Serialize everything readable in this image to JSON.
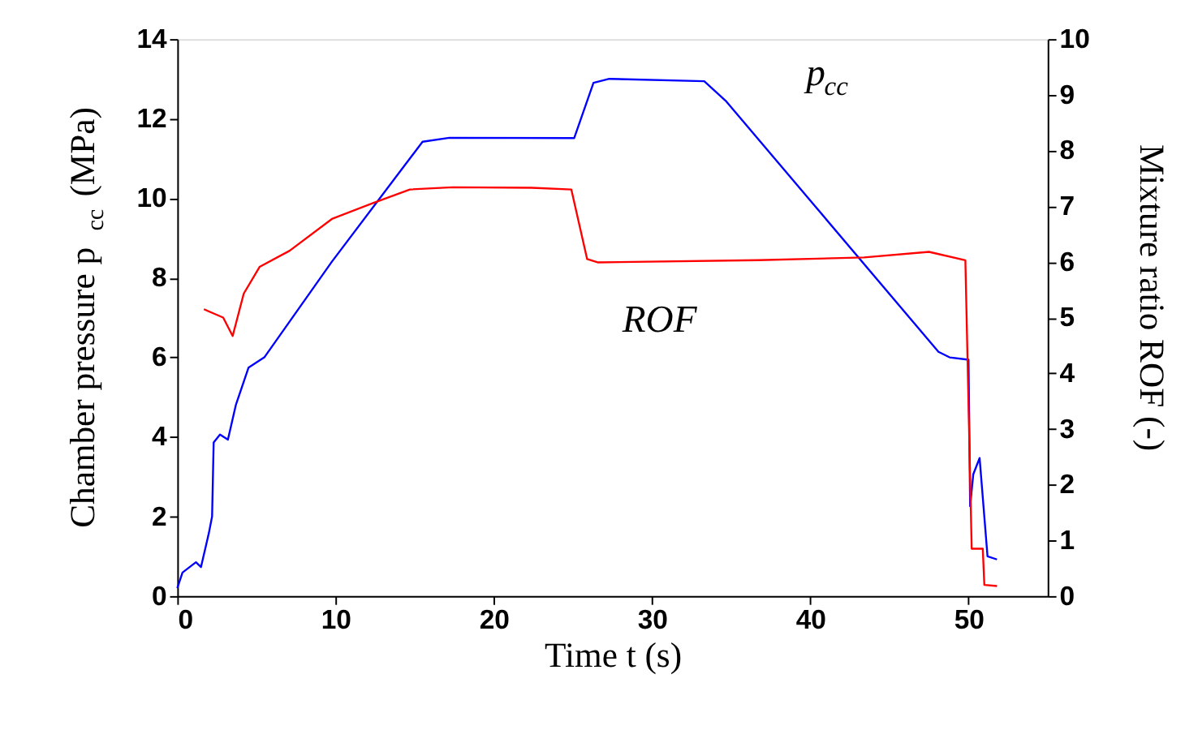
{
  "chart_data": {
    "type": "line",
    "xlabel": "Time t (s)",
    "ylabel": "Chamber pressure p$_{cc}$ (MPa)",
    "y2label": "Mixture ratio ROF (-)",
    "xlim": [
      0,
      55
    ],
    "xticks": [
      0,
      10,
      20,
      30,
      40,
      50
    ],
    "ylim": [
      0,
      14
    ],
    "yticks": [
      0,
      2,
      4,
      6,
      8,
      10,
      12,
      14
    ],
    "y2lim": [
      0,
      10
    ],
    "y2ticks": [
      0,
      1,
      2,
      3,
      4,
      5,
      6,
      7,
      8,
      9,
      10
    ],
    "grid": false,
    "line_style": "solid",
    "marker": "none",
    "series": [
      {
        "name": "p$_{cc}$",
        "color": "#0000ff",
        "x": [
          0,
          0.33,
          1.18,
          1.5,
          2.0,
          2.2,
          2.3,
          2.7,
          3.2,
          3.7,
          4.5,
          5.5,
          9.76,
          15.5,
          17.2,
          25.08,
          26.3,
          27.3,
          33.3,
          34.7,
          48.1,
          48.8,
          50.0,
          50.1,
          50.3,
          50.7,
          51.2,
          51.8
        ],
        "values": [
          0.2,
          0.59,
          0.85,
          0.73,
          1.59,
          2.0,
          3.86,
          4.06,
          3.93,
          4.8,
          5.74,
          6.0,
          8.4,
          11.42,
          11.52,
          11.51,
          12.9,
          13.0,
          12.94,
          12.43,
          6.14,
          6.0,
          5.94,
          2.26,
          3.06,
          3.47,
          1.0,
          0.92
        ]
      },
      {
        "name": "ROF",
        "color": "#ff0000",
        "axis": "y2",
        "x": [
          1.68,
          2.9,
          3.5,
          4.2,
          5.2,
          7.1,
          9.77,
          12.4,
          14.7,
          17.4,
          22.4,
          24.9,
          25.9,
          26.6,
          36.7,
          43.4,
          47.5,
          49.8,
          50.2,
          50.9,
          51.0,
          51.8
        ],
        "values": [
          5.15,
          5.0,
          4.67,
          5.43,
          5.91,
          6.2,
          6.77,
          7.06,
          7.3,
          7.34,
          7.33,
          7.3,
          6.05,
          5.99,
          6.03,
          6.08,
          6.18,
          6.03,
          0.85,
          0.85,
          0.2,
          0.18
        ]
      }
    ]
  }
}
